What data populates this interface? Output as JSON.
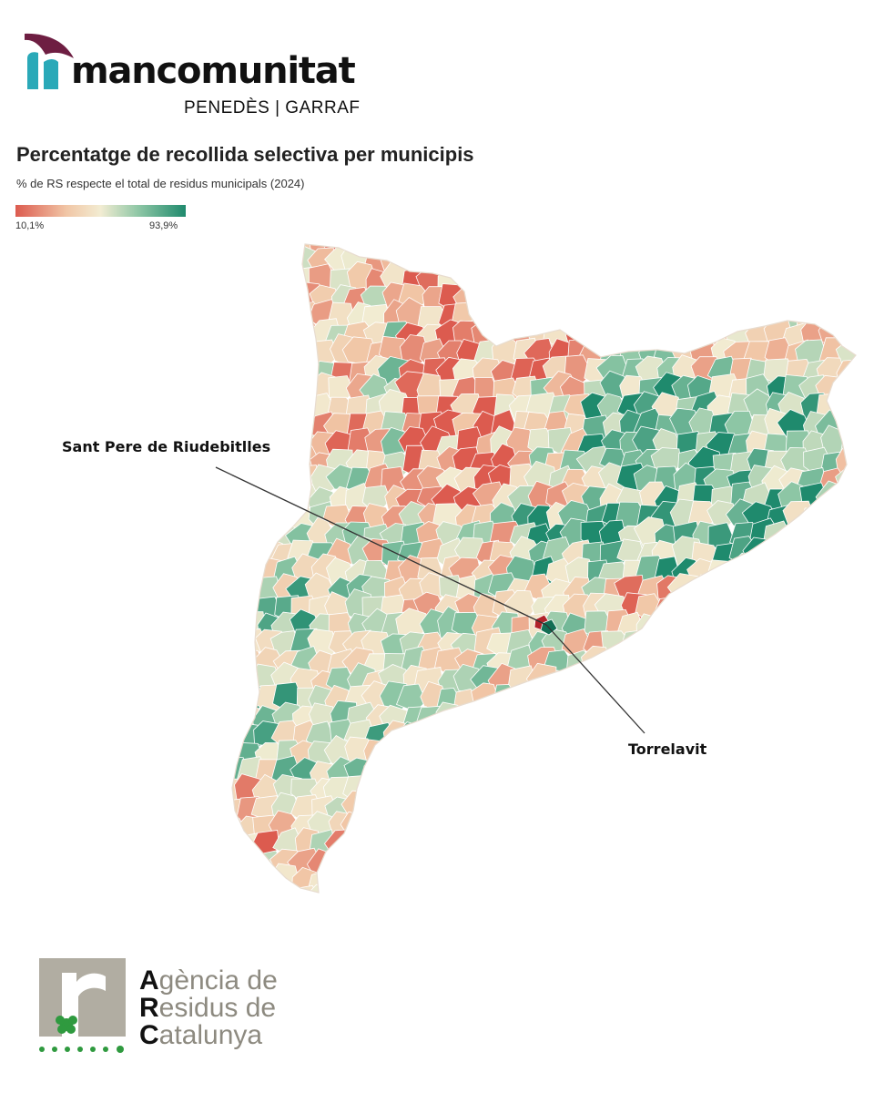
{
  "brand": {
    "wordmark": "mancomunitat",
    "subline": "PENEDÈS | GARRAF",
    "colors": {
      "purple": "#6e1e42",
      "teal": "#2aa9b8"
    }
  },
  "map": {
    "title": "Percentatge de recollida selectiva per municipis",
    "subtitle": "% de RS respecte el total de residus municipals (2024)",
    "legend": {
      "min_label": "10,1%",
      "max_label": "93,9%",
      "colors": [
        "#dc5b4f",
        "#f1c6a6",
        "#f2ecd2",
        "#8fc7a6",
        "#1f8a6d"
      ]
    },
    "callouts": {
      "sant_pere": "Sant Pere de Riudebitlles",
      "torrelavit": "Torrelavit"
    }
  },
  "arc": {
    "lines": [
      {
        "initial": "A",
        "rest": "gència de"
      },
      {
        "initial": "R",
        "rest": "esidus de"
      },
      {
        "initial": "C",
        "rest": "atalunya"
      }
    ],
    "colors": {
      "grey": "#b1ada2",
      "green": "#2f9a3f"
    }
  }
}
